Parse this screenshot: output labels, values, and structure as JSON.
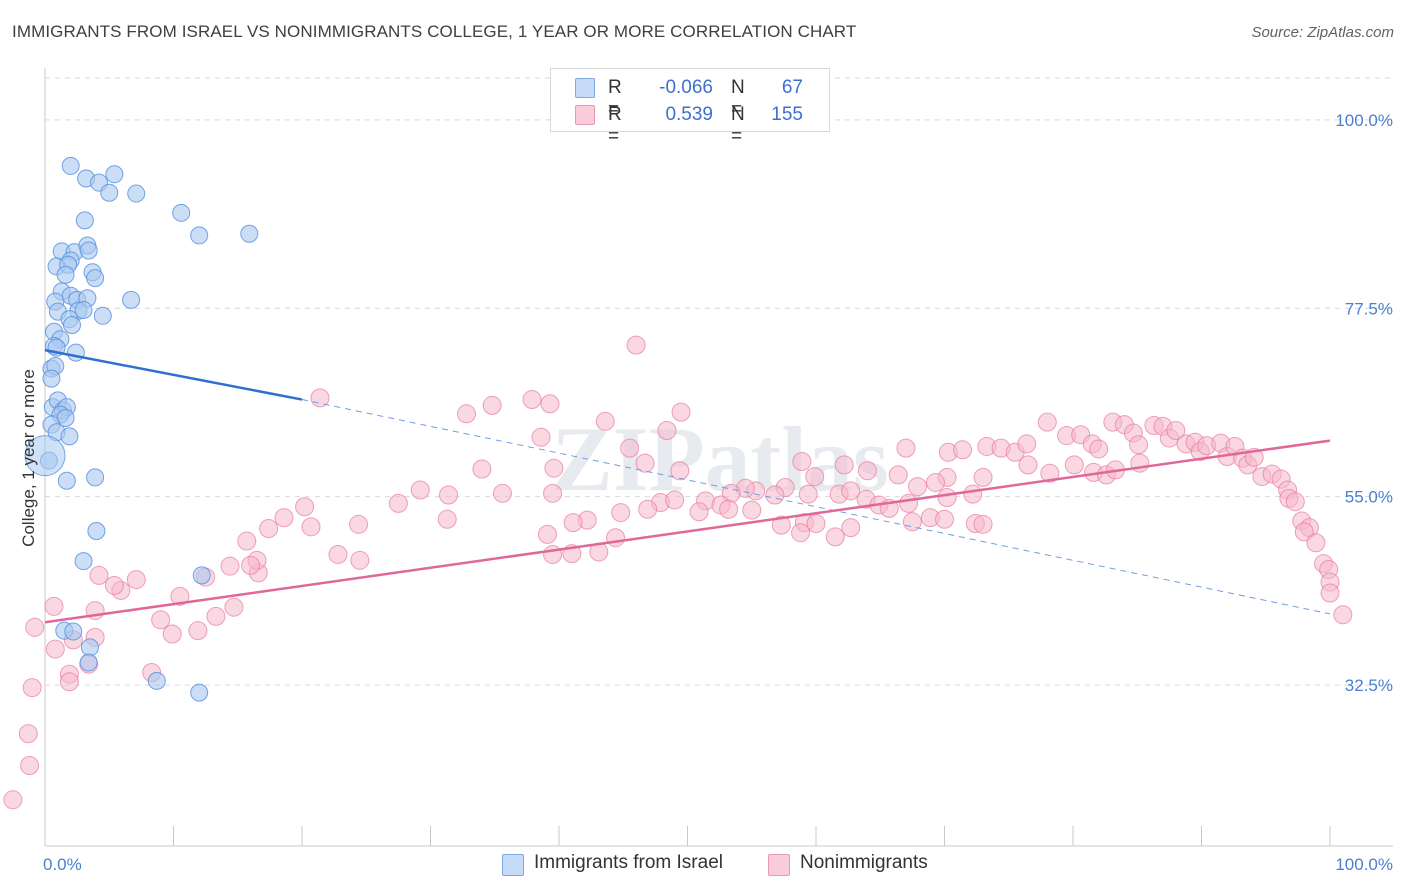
{
  "title": "IMMIGRANTS FROM ISRAEL VS NONIMMIGRANTS COLLEGE, 1 YEAR OR MORE CORRELATION CHART",
  "source": "Source: ZipAtlas.com",
  "watermark": "ZIPatlas",
  "legend": {
    "rows": [
      {
        "r_label": "R =",
        "r_value": "-0.066",
        "n_label": "N =",
        "n_value": "67",
        "color": "#a8c8f0"
      },
      {
        "r_label": "R =",
        "r_value": "0.539",
        "n_label": "N =",
        "n_value": "155",
        "color": "#f5b8cb"
      }
    ]
  },
  "bottom_legend": [
    "Immigrants from Israel",
    "Nonimmigrants"
  ],
  "chart_data": {
    "type": "scatter",
    "title": "IMMIGRANTS FROM ISRAEL VS NONIMMIGRANTS COLLEGE, 1 YEAR OR MORE CORRELATION CHART",
    "xlabel": "",
    "ylabel": "College, 1 year or more",
    "xlim": [
      0,
      100
    ],
    "ylim": [
      14,
      105
    ],
    "x_tick_labels": [
      "0.0%",
      "100.0%"
    ],
    "y_ticks": [
      100.0,
      77.5,
      55.0,
      32.5
    ],
    "y_tick_labels": [
      "100.0%",
      "77.5%",
      "55.0%",
      "32.5%"
    ],
    "grid": true,
    "series": [
      {
        "name": "Immigrants from Israel",
        "color": "#5b93e0",
        "fill": "#a8c8f0",
        "trend": {
          "x0": 0,
          "y0": 72.5,
          "x1_solid": 20,
          "y1_solid": 66.6,
          "x1": 100,
          "y1": 41.0
        },
        "points": [
          [
            2.0,
            94.5
          ],
          [
            3.2,
            93.0
          ],
          [
            4.2,
            92.5
          ],
          [
            5.4,
            93.5
          ],
          [
            5.0,
            91.3
          ],
          [
            7.1,
            91.2
          ],
          [
            3.1,
            88.0
          ],
          [
            10.6,
            88.9
          ],
          [
            12.0,
            86.2
          ],
          [
            15.9,
            86.4
          ],
          [
            1.3,
            84.3
          ],
          [
            2.3,
            84.2
          ],
          [
            3.3,
            85.0
          ],
          [
            2.0,
            83.2
          ],
          [
            3.4,
            84.4
          ],
          [
            0.9,
            82.5
          ],
          [
            1.8,
            82.7
          ],
          [
            1.6,
            81.5
          ],
          [
            3.7,
            81.8
          ],
          [
            3.9,
            81.1
          ],
          [
            1.3,
            79.5
          ],
          [
            2.0,
            79.0
          ],
          [
            2.5,
            78.5
          ],
          [
            3.3,
            78.7
          ],
          [
            0.8,
            78.3
          ],
          [
            6.7,
            78.5
          ],
          [
            1.0,
            77.1
          ],
          [
            2.6,
            77.2
          ],
          [
            4.5,
            76.6
          ],
          [
            3.0,
            77.3
          ],
          [
            1.9,
            76.2
          ],
          [
            2.1,
            75.5
          ],
          [
            0.7,
            74.7
          ],
          [
            1.2,
            73.8
          ],
          [
            0.7,
            73.0
          ],
          [
            0.9,
            72.8
          ],
          [
            2.4,
            72.2
          ],
          [
            0.5,
            70.3
          ],
          [
            0.8,
            70.6
          ],
          [
            0.5,
            69.1
          ],
          [
            0.6,
            65.7
          ],
          [
            1.0,
            66.5
          ],
          [
            1.4,
            65.3
          ],
          [
            1.7,
            65.7
          ],
          [
            1.2,
            64.8
          ],
          [
            1.6,
            64.4
          ],
          [
            0.5,
            63.6
          ],
          [
            0.9,
            62.7
          ],
          [
            1.9,
            62.2
          ],
          [
            0.3,
            59.3
          ],
          [
            1.7,
            56.9
          ],
          [
            3.9,
            57.3
          ],
          [
            4.0,
            50.9
          ],
          [
            3.0,
            47.3
          ],
          [
            12.2,
            45.6
          ],
          [
            1.5,
            39.0
          ],
          [
            2.2,
            38.9
          ],
          [
            3.5,
            37.0
          ],
          [
            3.4,
            35.2
          ],
          [
            8.7,
            33.0
          ],
          [
            12.0,
            31.6
          ]
        ],
        "big_points": [
          [
            0.0,
            59.9
          ]
        ]
      },
      {
        "name": "Nonimmigrants",
        "color": "#e8799f",
        "fill": "#f5b8cb",
        "trend": {
          "x0": 0,
          "y0": 40.0,
          "x1": 100,
          "y1": 61.7
        },
        "points": [
          [
            21.4,
            66.8
          ],
          [
            32.8,
            64.9
          ],
          [
            34.8,
            65.9
          ],
          [
            37.9,
            66.6
          ],
          [
            39.3,
            66.1
          ],
          [
            43.6,
            64.0
          ],
          [
            46.0,
            73.1
          ],
          [
            49.5,
            65.1
          ],
          [
            48.4,
            62.9
          ],
          [
            38.6,
            62.1
          ],
          [
            45.5,
            60.8
          ],
          [
            46.7,
            59.0
          ],
          [
            49.4,
            58.1
          ],
          [
            58.9,
            59.2
          ],
          [
            62.2,
            58.8
          ],
          [
            67.0,
            60.8
          ],
          [
            70.3,
            60.3
          ],
          [
            71.4,
            60.6
          ],
          [
            73.3,
            61.0
          ],
          [
            74.4,
            60.8
          ],
          [
            75.5,
            60.3
          ],
          [
            76.4,
            61.3
          ],
          [
            78.0,
            63.9
          ],
          [
            79.5,
            62.3
          ],
          [
            80.6,
            62.4
          ],
          [
            81.5,
            61.3
          ],
          [
            82.0,
            60.7
          ],
          [
            83.1,
            63.9
          ],
          [
            84.0,
            63.6
          ],
          [
            84.7,
            62.6
          ],
          [
            85.1,
            61.2
          ],
          [
            86.3,
            63.5
          ],
          [
            87.0,
            63.4
          ],
          [
            87.5,
            62.0
          ],
          [
            88.0,
            62.9
          ],
          [
            88.8,
            61.3
          ],
          [
            89.5,
            61.5
          ],
          [
            89.9,
            60.4
          ],
          [
            90.4,
            61.1
          ],
          [
            91.5,
            61.4
          ],
          [
            92.0,
            59.8
          ],
          [
            92.6,
            61.0
          ],
          [
            93.2,
            59.6
          ],
          [
            93.6,
            58.8
          ],
          [
            94.1,
            59.7
          ],
          [
            94.7,
            57.4
          ],
          [
            95.5,
            57.7
          ],
          [
            96.2,
            57.1
          ],
          [
            96.7,
            55.8
          ],
          [
            96.8,
            54.8
          ],
          [
            97.3,
            54.4
          ],
          [
            97.8,
            52.1
          ],
          [
            98.4,
            51.3
          ],
          [
            98.0,
            50.8
          ],
          [
            98.9,
            49.5
          ],
          [
            99.5,
            47.0
          ],
          [
            99.9,
            46.3
          ],
          [
            100.0,
            44.8
          ],
          [
            100.0,
            43.5
          ],
          [
            101.0,
            40.9
          ],
          [
            80.1,
            58.8
          ],
          [
            81.6,
            57.9
          ],
          [
            82.6,
            57.6
          ],
          [
            85.2,
            59.0
          ],
          [
            83.3,
            58.2
          ],
          [
            78.2,
            57.8
          ],
          [
            76.5,
            58.8
          ],
          [
            73.0,
            57.3
          ],
          [
            70.2,
            57.3
          ],
          [
            72.2,
            55.3
          ],
          [
            69.3,
            56.7
          ],
          [
            67.9,
            56.2
          ],
          [
            66.4,
            57.6
          ],
          [
            64.0,
            58.1
          ],
          [
            59.9,
            57.4
          ],
          [
            59.4,
            55.3
          ],
          [
            61.8,
            55.3
          ],
          [
            62.7,
            55.7
          ],
          [
            63.9,
            54.7
          ],
          [
            64.9,
            54.0
          ],
          [
            65.7,
            53.6
          ],
          [
            67.2,
            54.2
          ],
          [
            67.5,
            52.0
          ],
          [
            68.9,
            52.5
          ],
          [
            70.0,
            52.3
          ],
          [
            72.4,
            51.8
          ],
          [
            73.0,
            51.7
          ],
          [
            70.2,
            54.9
          ],
          [
            57.6,
            56.1
          ],
          [
            55.3,
            55.7
          ],
          [
            54.5,
            56.0
          ],
          [
            56.8,
            55.2
          ],
          [
            53.4,
            55.4
          ],
          [
            51.4,
            54.5
          ],
          [
            47.9,
            54.3
          ],
          [
            49.0,
            54.6
          ],
          [
            52.6,
            54.0
          ],
          [
            50.9,
            53.2
          ],
          [
            53.2,
            53.5
          ],
          [
            55.0,
            53.4
          ],
          [
            57.3,
            51.6
          ],
          [
            59.1,
            51.9
          ],
          [
            58.8,
            50.7
          ],
          [
            62.7,
            51.3
          ],
          [
            61.5,
            50.2
          ],
          [
            60.0,
            51.8
          ],
          [
            46.9,
            53.5
          ],
          [
            44.8,
            53.1
          ],
          [
            42.2,
            52.2
          ],
          [
            41.1,
            51.9
          ],
          [
            44.4,
            50.1
          ],
          [
            43.1,
            48.4
          ],
          [
            41.0,
            48.2
          ],
          [
            39.5,
            48.1
          ],
          [
            39.1,
            50.5
          ],
          [
            39.5,
            55.4
          ],
          [
            39.6,
            58.4
          ],
          [
            35.6,
            55.4
          ],
          [
            34.0,
            58.3
          ],
          [
            31.4,
            55.2
          ],
          [
            29.2,
            55.8
          ],
          [
            31.3,
            52.3
          ],
          [
            27.5,
            54.2
          ],
          [
            24.4,
            51.7
          ],
          [
            24.5,
            47.4
          ],
          [
            22.8,
            48.1
          ],
          [
            20.7,
            51.4
          ],
          [
            20.2,
            53.8
          ],
          [
            18.6,
            52.5
          ],
          [
            17.4,
            51.2
          ],
          [
            15.7,
            49.7
          ],
          [
            16.6,
            45.9
          ],
          [
            14.4,
            46.7
          ],
          [
            12.5,
            45.4
          ],
          [
            14.7,
            41.8
          ],
          [
            16.5,
            47.4
          ],
          [
            16.0,
            46.8
          ],
          [
            13.3,
            40.7
          ],
          [
            11.9,
            39.0
          ],
          [
            10.5,
            43.1
          ],
          [
            9.0,
            40.3
          ],
          [
            9.9,
            38.6
          ],
          [
            8.3,
            34.0
          ],
          [
            7.1,
            45.1
          ],
          [
            5.9,
            43.8
          ],
          [
            5.4,
            44.4
          ],
          [
            4.2,
            45.6
          ],
          [
            3.9,
            41.4
          ],
          [
            3.9,
            38.2
          ],
          [
            3.4,
            35.0
          ],
          [
            2.2,
            37.9
          ],
          [
            1.9,
            33.8
          ],
          [
            1.9,
            32.9
          ],
          [
            0.8,
            36.8
          ],
          [
            0.7,
            41.9
          ],
          [
            -0.8,
            39.4
          ],
          [
            -1.0,
            32.2
          ],
          [
            -1.3,
            26.7
          ],
          [
            -1.2,
            22.9
          ],
          [
            -2.5,
            18.8
          ]
        ]
      }
    ]
  }
}
